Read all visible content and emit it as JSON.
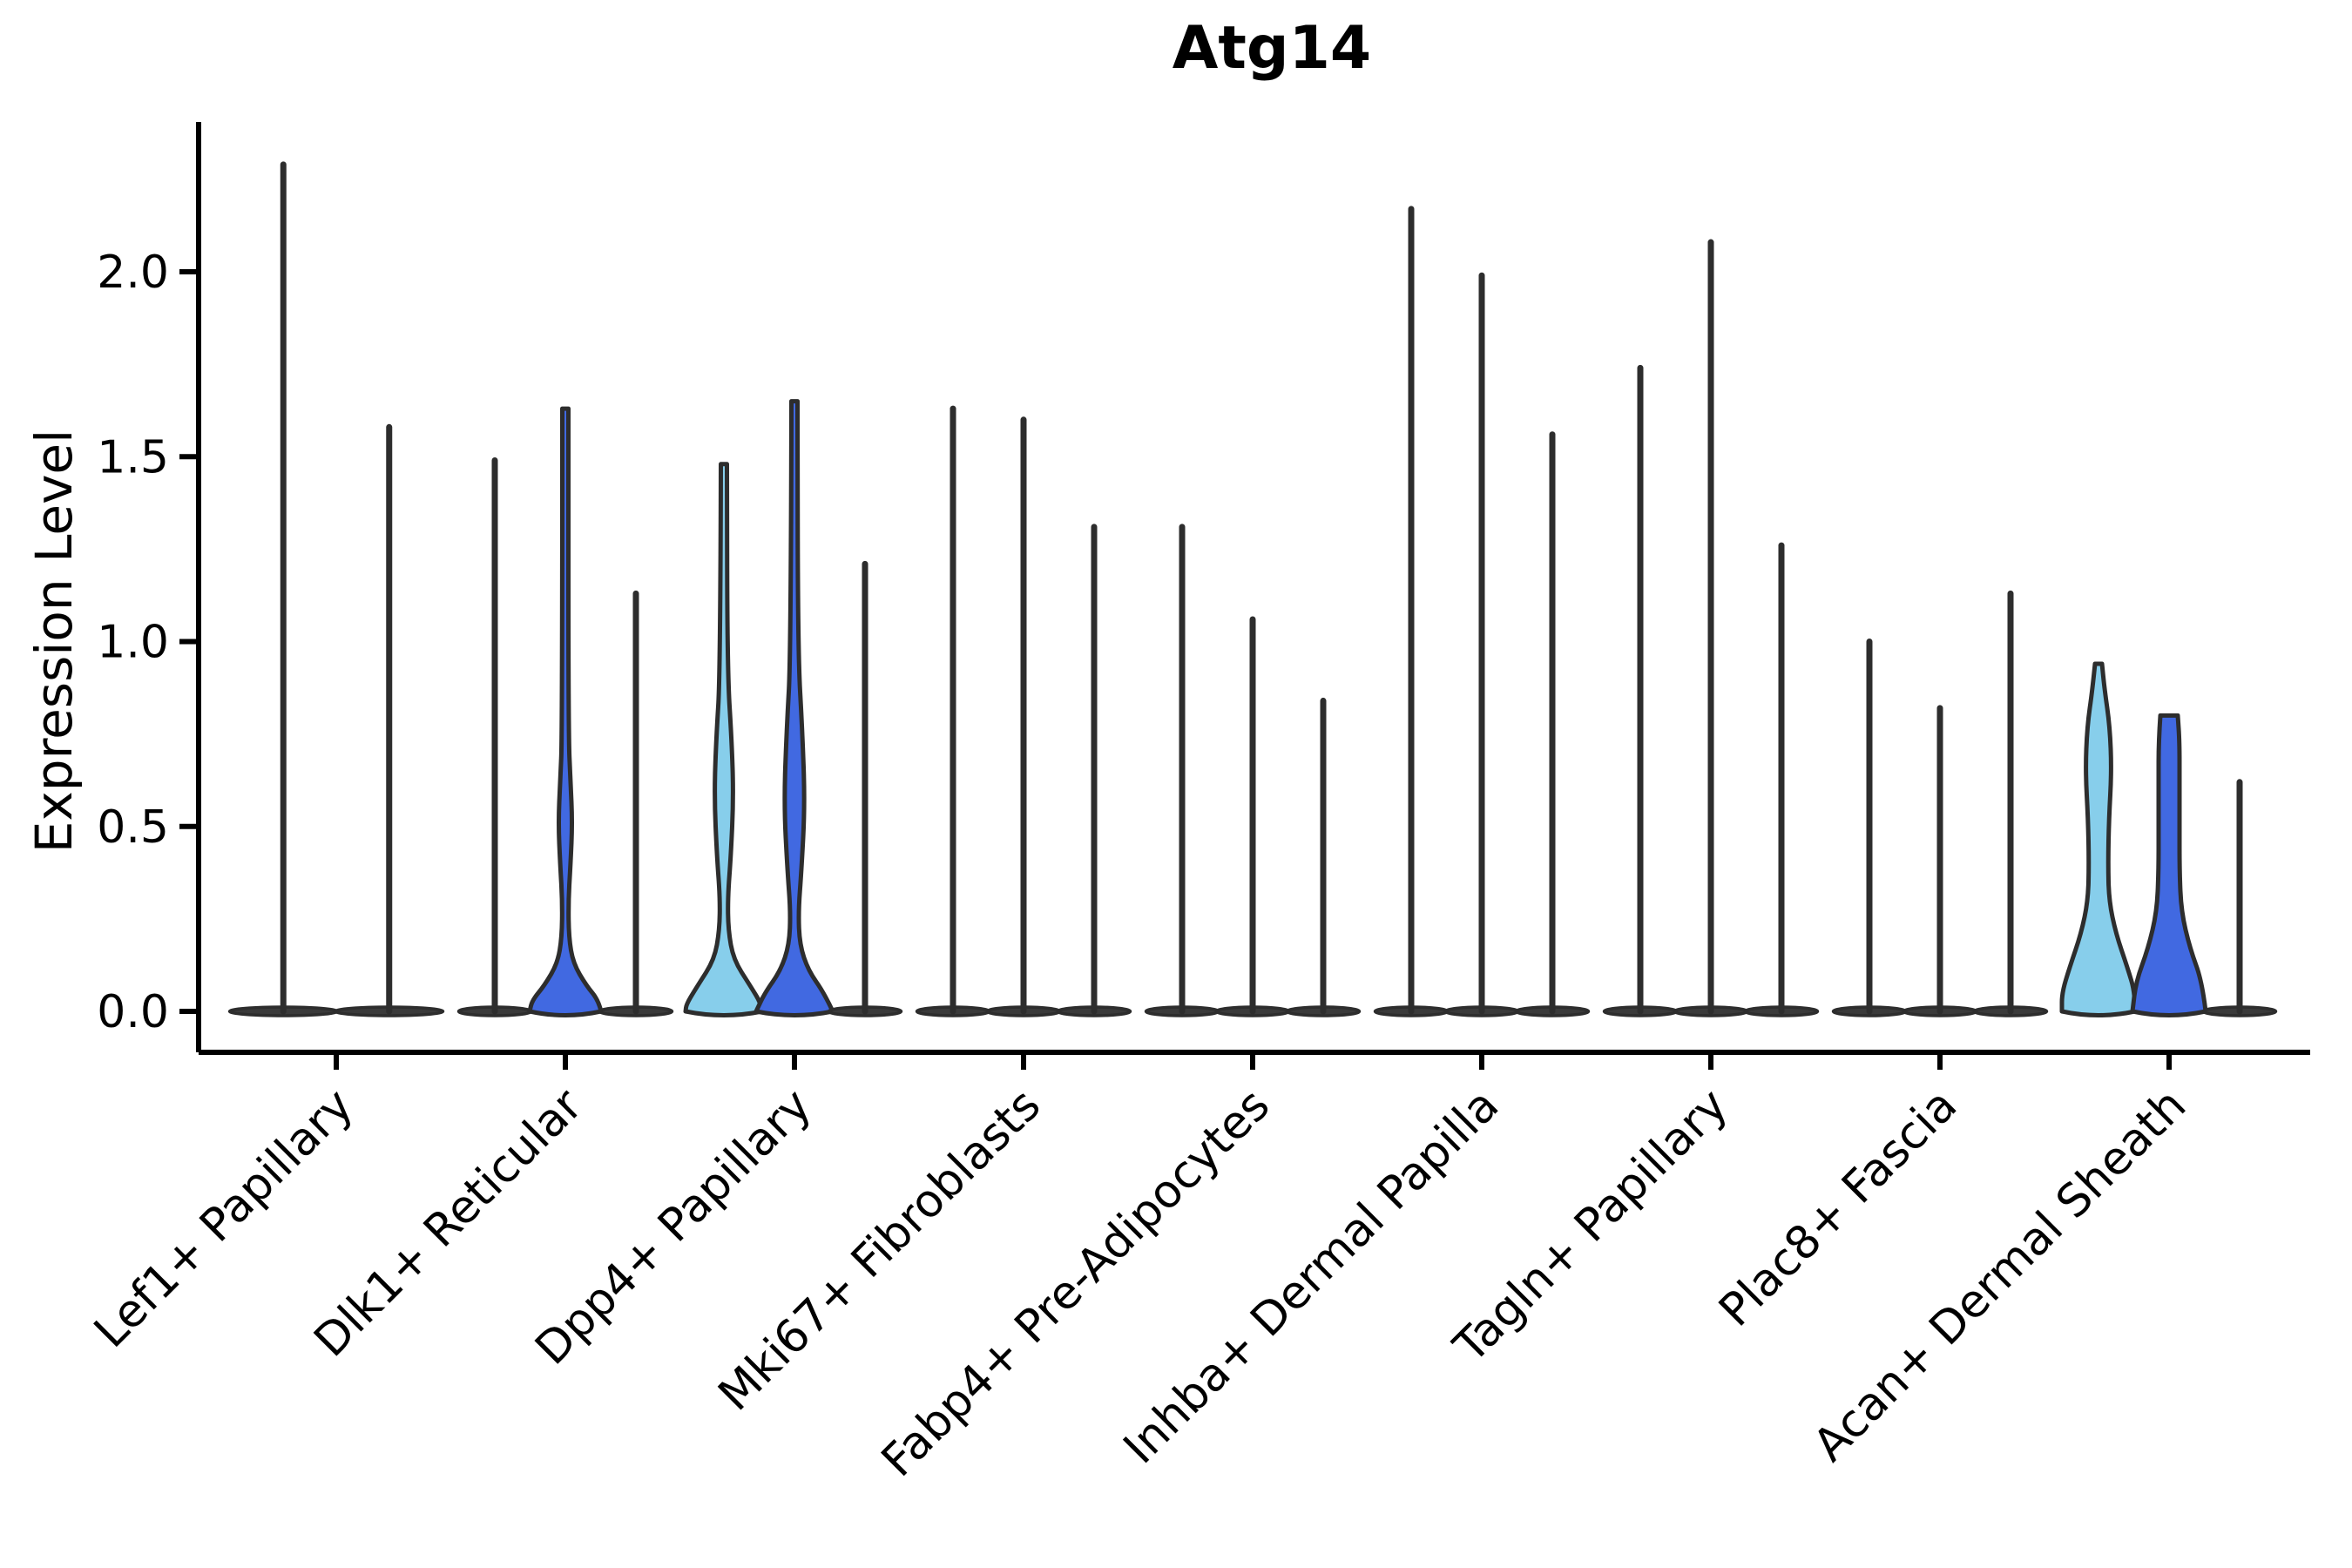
{
  "title": "Atg14",
  "ylabel": "Expression Level",
  "chart_data": {
    "type": "violin",
    "title": "Atg14",
    "xlabel": "",
    "ylabel": "Expression Level",
    "ylim": [
      -0.11,
      2.41
    ],
    "grid": false,
    "legend": "none",
    "ytick_labels": [
      "0.0",
      "0.5",
      "1.0",
      "1.5",
      "2.0"
    ],
    "ytick_values": [
      0.0,
      0.5,
      1.0,
      1.5,
      2.0
    ],
    "categories": [
      "Lef1+ Papillary",
      "Dlk1+ Reticular",
      "Dpp4+ Papillary",
      "Mki67+ Fibroblasts",
      "Fabp4+ Pre-Adipocytes",
      "Inhba+ Dermal Papilla",
      "Tagln+ Papillary",
      "Plac8+ Fascia",
      "Acan+ Dermal Sheath"
    ],
    "colors": {
      "split_a_fill": "#87CEEB",
      "split_b_fill": "#4169E1",
      "violin_outline": "#2d2d2d",
      "collapsed_base_fill": "#3a3a3a",
      "axis_color": "#000000"
    },
    "groups": [
      {
        "category": "Lef1+ Papillary",
        "violins": [
          {
            "peak": 2.29,
            "style": "spike"
          },
          {
            "peak": 1.58,
            "style": "spike"
          }
        ]
      },
      {
        "category": "Dlk1+ Reticular",
        "violins": [
          {
            "peak": 1.49,
            "style": "spike"
          },
          {
            "peak": 1.63,
            "style": "filled",
            "fill": "#4169E1",
            "profile": [
              [
                1.63,
                3.5
              ],
              [
                0.75,
                3.5
              ],
              [
                0.62,
                6
              ],
              [
                0.51,
                8
              ],
              [
                0.4,
                6
              ],
              [
                0.3,
                3.5
              ],
              [
                0.2,
                4
              ],
              [
                0.13,
                9
              ],
              [
                0.07,
                24
              ],
              [
                0.03,
                38
              ],
              [
                0,
                41
              ]
            ]
          },
          {
            "peak": 1.13,
            "style": "spike"
          }
        ]
      },
      {
        "category": "Dpp4+ Papillary",
        "violins": [
          {
            "peak": 1.48,
            "style": "filled",
            "fill": "#87CEEB",
            "profile": [
              [
                1.48,
                3.5
              ],
              [
                0.92,
                4
              ],
              [
                0.73,
                9
              ],
              [
                0.58,
                11
              ],
              [
                0.42,
                8
              ],
              [
                0.31,
                4.5
              ],
              [
                0.22,
                5
              ],
              [
                0.14,
                11
              ],
              [
                0.07,
                30
              ],
              [
                0.02,
                43
              ],
              [
                0,
                44
              ]
            ]
          },
          {
            "peak": 1.65,
            "style": "filled",
            "fill": "#4169E1",
            "profile": [
              [
                1.65,
                3.5
              ],
              [
                0.97,
                4
              ],
              [
                0.76,
                9
              ],
              [
                0.56,
                12
              ],
              [
                0.38,
                8
              ],
              [
                0.27,
                4.5
              ],
              [
                0.18,
                6
              ],
              [
                0.11,
                16
              ],
              [
                0.05,
                34
              ],
              [
                0,
                44
              ]
            ]
          },
          {
            "peak": 1.21,
            "style": "spike"
          }
        ]
      },
      {
        "category": "Mki67+ Fibroblasts",
        "violins": [
          {
            "peak": 1.63,
            "style": "spike"
          },
          {
            "peak": 1.6,
            "style": "spike"
          },
          {
            "peak": 1.31,
            "style": "spike"
          }
        ]
      },
      {
        "category": "Fabp4+ Pre-Adipocytes",
        "violins": [
          {
            "peak": 1.31,
            "style": "spike"
          },
          {
            "peak": 1.06,
            "style": "spike"
          },
          {
            "peak": 0.84,
            "style": "spike"
          }
        ]
      },
      {
        "category": "Inhba+ Dermal Papilla",
        "violins": [
          {
            "peak": 2.17,
            "style": "spike"
          },
          {
            "peak": 1.99,
            "style": "spike"
          },
          {
            "peak": 1.56,
            "style": "spike"
          }
        ]
      },
      {
        "category": "Tagln+ Papillary",
        "violins": [
          {
            "peak": 1.74,
            "style": "spike"
          },
          {
            "peak": 2.08,
            "style": "spike"
          },
          {
            "peak": 1.26,
            "style": "spike"
          }
        ]
      },
      {
        "category": "Plac8+ Fascia",
        "violins": [
          {
            "peak": 1.0,
            "style": "spike"
          },
          {
            "peak": 0.82,
            "style": "spike"
          },
          {
            "peak": 1.13,
            "style": "spike"
          }
        ]
      },
      {
        "category": "Acan+ Dermal Sheath",
        "violins": [
          {
            "peak": 0.94,
            "style": "filled",
            "fill": "#87CEEB",
            "profile": [
              [
                0.94,
                4
              ],
              [
                0.87,
                7
              ],
              [
                0.77,
                13
              ],
              [
                0.65,
                15
              ],
              [
                0.52,
                12
              ],
              [
                0.4,
                11
              ],
              [
                0.3,
                12
              ],
              [
                0.21,
                20
              ],
              [
                0.12,
                33
              ],
              [
                0.05,
                42
              ],
              [
                0,
                42
              ]
            ]
          },
          {
            "peak": 0.8,
            "style": "filled",
            "fill": "#4169E1",
            "profile": [
              [
                0.8,
                10
              ],
              [
                0.73,
                12
              ],
              [
                0.62,
                12
              ],
              [
                0.5,
                12
              ],
              [
                0.38,
                12
              ],
              [
                0.27,
                14
              ],
              [
                0.17,
                24
              ],
              [
                0.08,
                38
              ],
              [
                0,
                42
              ]
            ]
          },
          {
            "peak": 0.62,
            "style": "spike"
          }
        ]
      }
    ]
  }
}
